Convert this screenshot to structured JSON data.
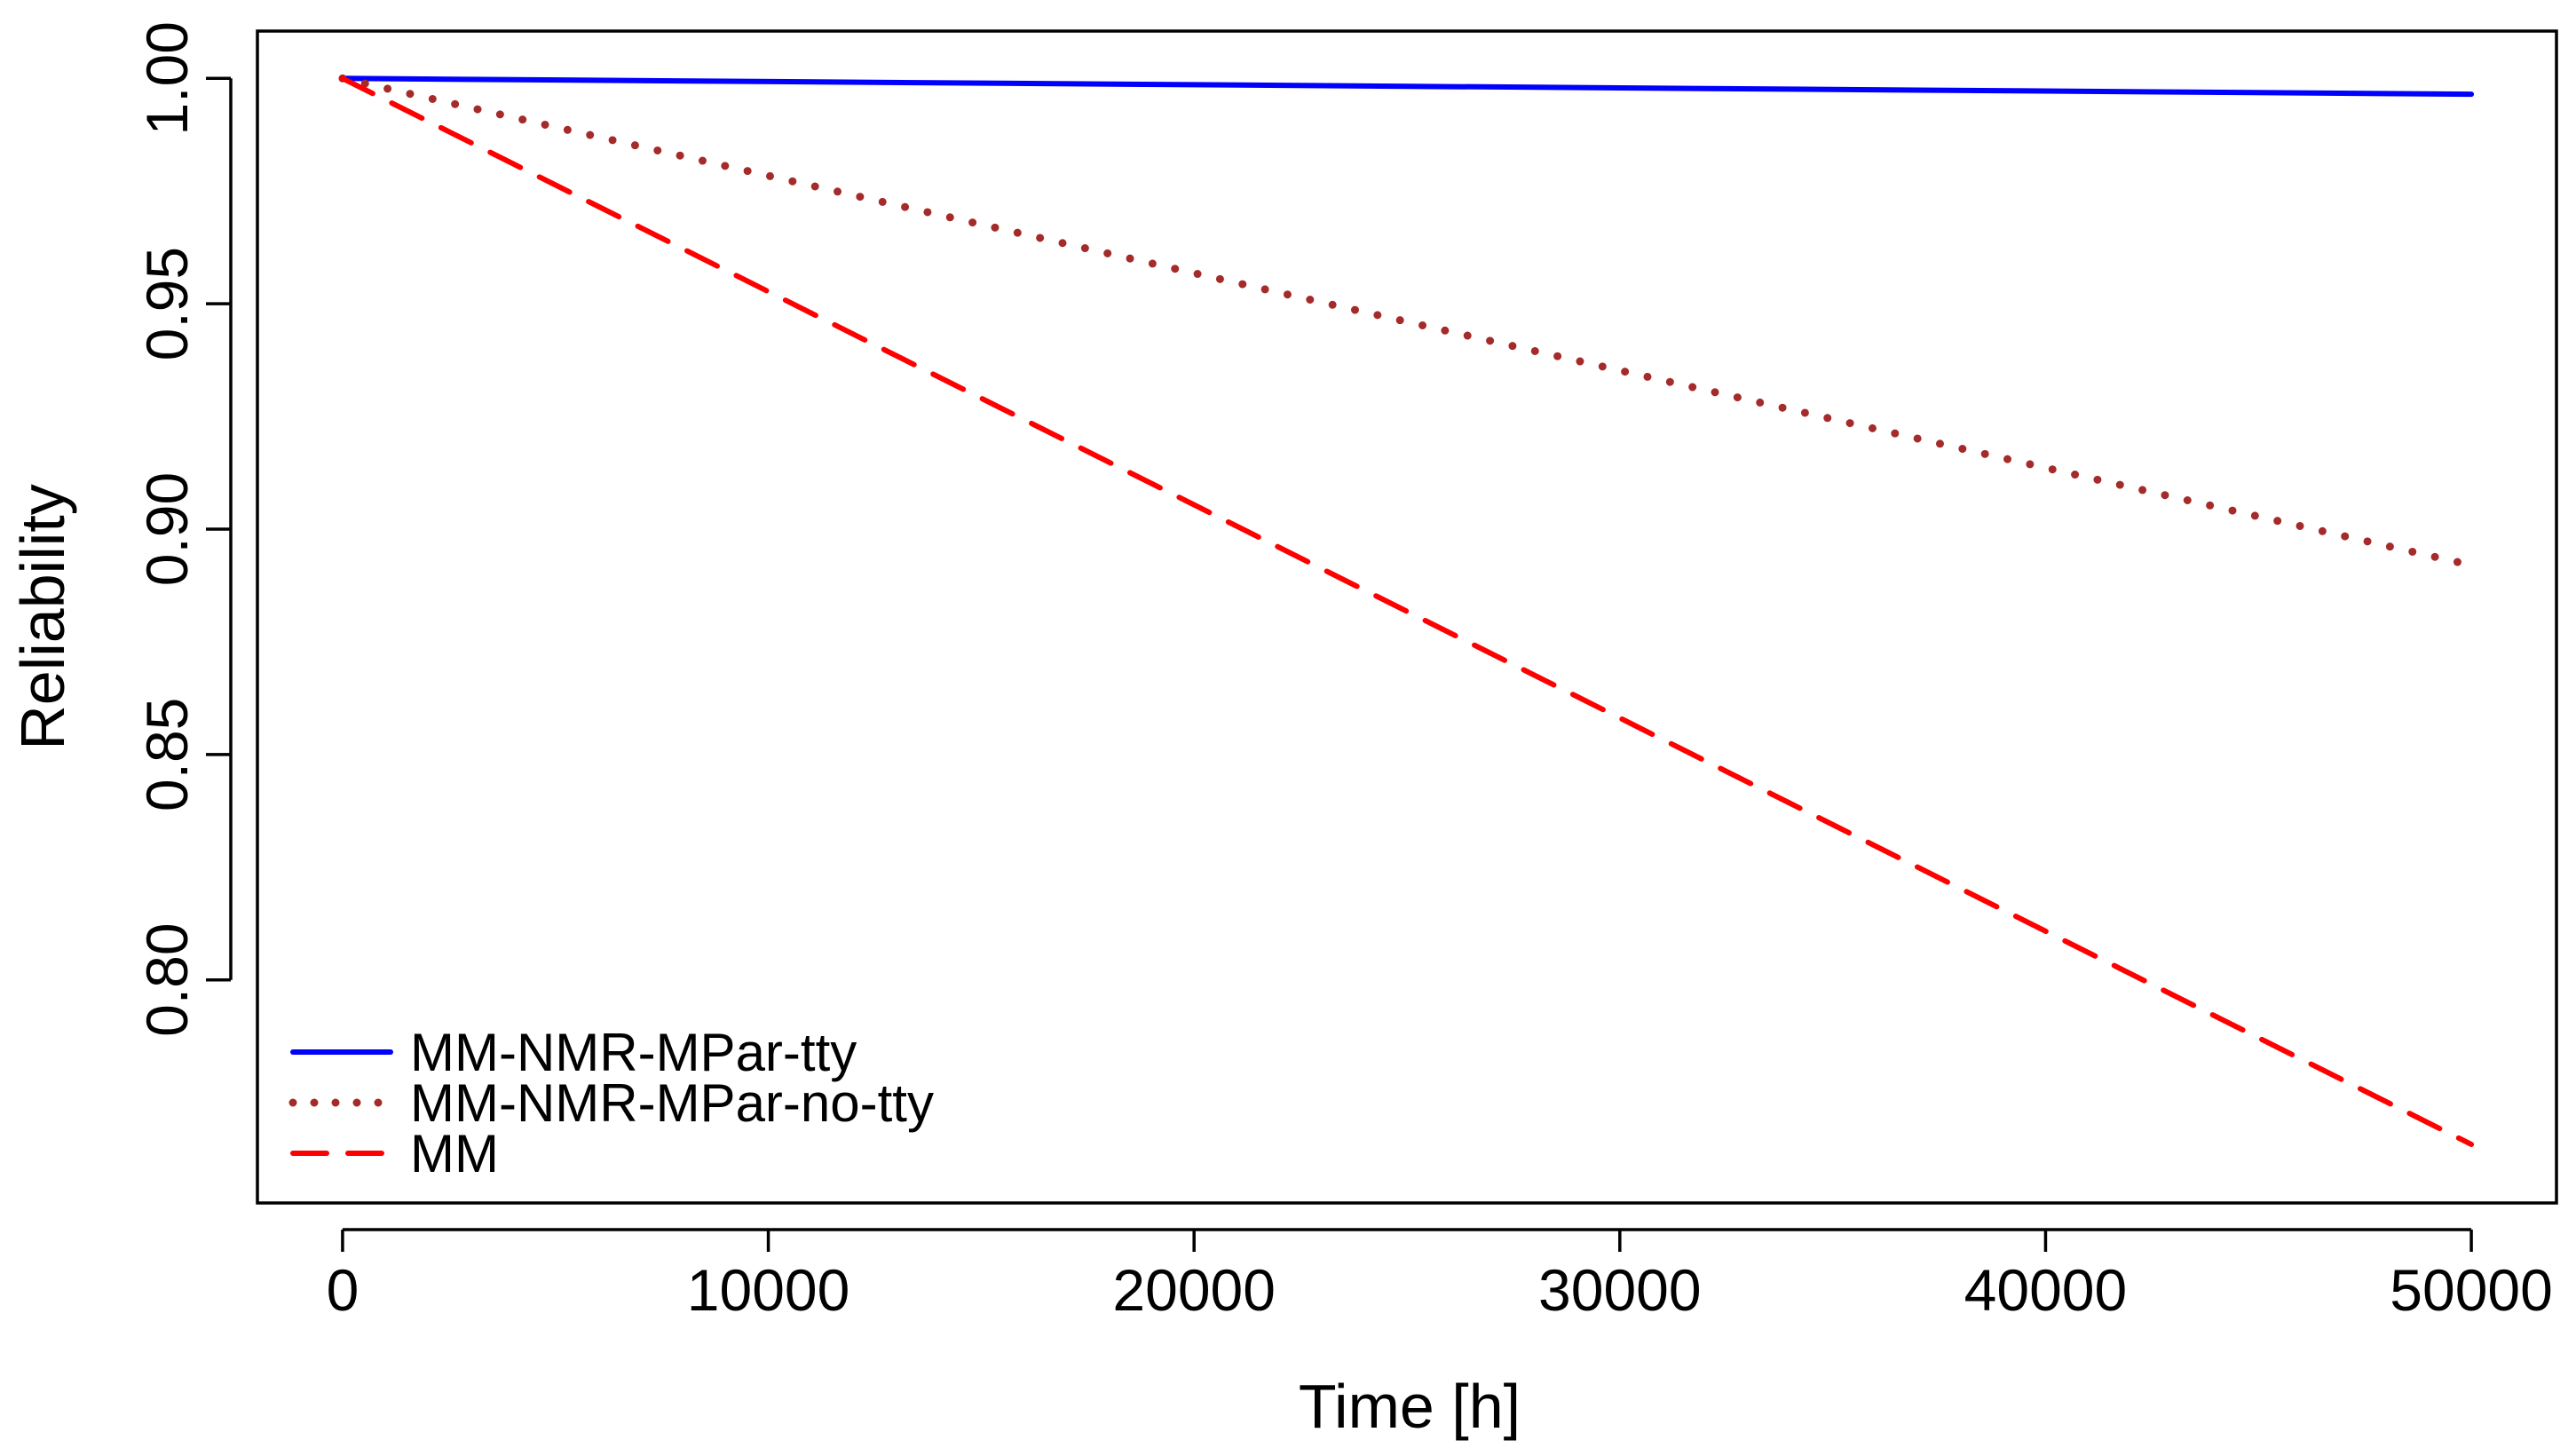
{
  "chart_data": {
    "type": "line",
    "title": "",
    "xlabel": "Time [h]",
    "ylabel": "Reliability",
    "xlim": [
      -2000,
      52000
    ],
    "ylim": [
      0.7505,
      1.0105
    ],
    "x_ticks": [
      0,
      10000,
      20000,
      30000,
      40000,
      50000
    ],
    "x_tick_labels": [
      "0",
      "10000",
      "20000",
      "30000",
      "40000",
      "50000"
    ],
    "y_ticks": [
      0.8,
      0.85,
      0.9,
      0.95,
      1.0
    ],
    "y_tick_labels": [
      "0.80",
      "0.85",
      "0.90",
      "0.95",
      "1.00"
    ],
    "grid": false,
    "legend_position": "bottom-left",
    "x": [
      0,
      50000
    ],
    "series": [
      {
        "name": "MM-NMR-MPar-tty",
        "values": [
          1.0,
          0.9965
        ],
        "color": "#0000ff",
        "style": "solid"
      },
      {
        "name": "MM-NMR-MPar-no-tty",
        "values": [
          1.0,
          0.892
        ],
        "color": "#a52a2a",
        "style": "dotted"
      },
      {
        "name": "MM",
        "values": [
          1.0,
          0.7635
        ],
        "color": "#ff0000",
        "style": "dashed"
      }
    ]
  }
}
